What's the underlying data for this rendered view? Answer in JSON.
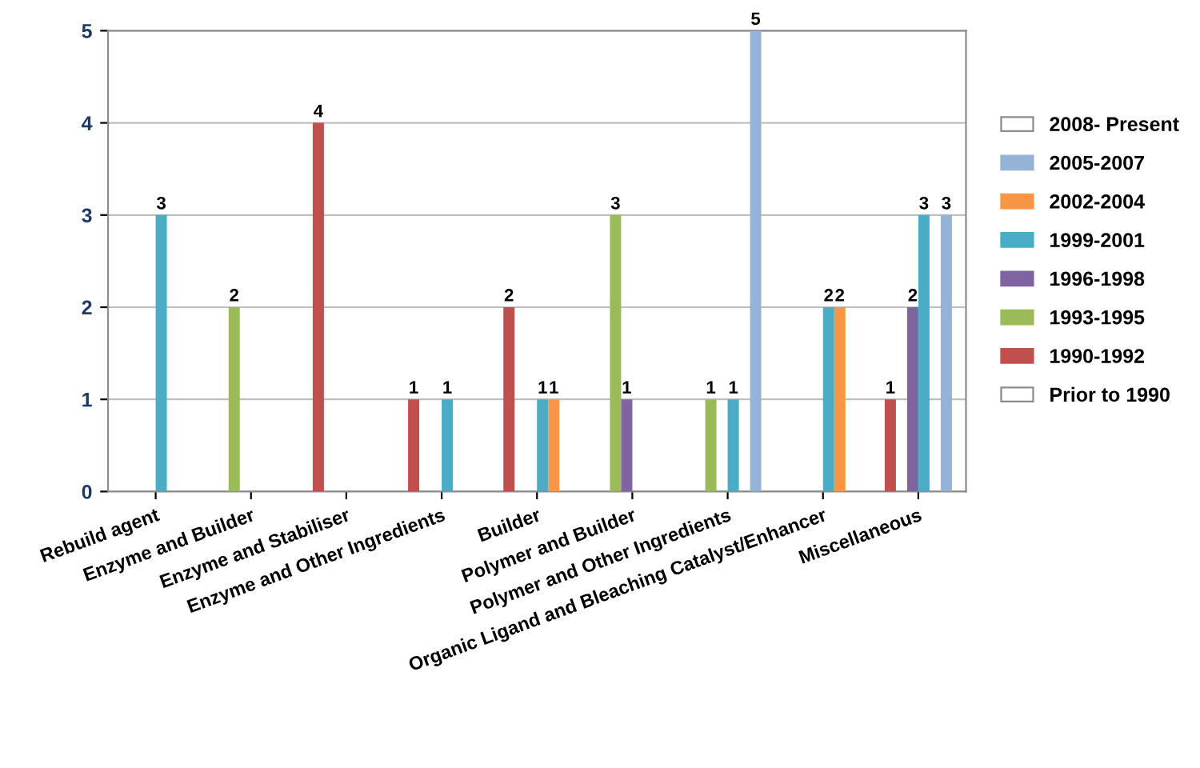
{
  "chart_data": {
    "type": "bar",
    "categories": [
      "Rebuild agent",
      "Enzyme and Builder",
      "Enzyme and Stabiliser",
      "Enzyme and Other Ingredients",
      "Builder",
      "Polymer and Builder",
      "Polymer and Other Ingredients",
      "Organic Ligand and Bleaching Catalyst/Enhancer",
      "Miscellaneous"
    ],
    "series": [
      {
        "name": "Prior to 1990",
        "values": [
          null,
          null,
          null,
          null,
          null,
          null,
          null,
          null,
          null
        ]
      },
      {
        "name": "1990-1992",
        "color": "#c0504d",
        "values": [
          null,
          null,
          4,
          1,
          2,
          null,
          null,
          null,
          1
        ]
      },
      {
        "name": "1993-1995",
        "color": "#9bbb59",
        "values": [
          null,
          2,
          null,
          null,
          null,
          3,
          1,
          null,
          null
        ]
      },
      {
        "name": "1996-1998",
        "color": "#8064a2",
        "values": [
          null,
          null,
          null,
          null,
          null,
          1,
          null,
          null,
          2
        ]
      },
      {
        "name": "1999-2001",
        "color": "#4bacc6",
        "values": [
          3,
          null,
          null,
          1,
          1,
          null,
          1,
          2,
          3
        ]
      },
      {
        "name": "2002-2004",
        "color": "#f79646",
        "values": [
          null,
          null,
          null,
          null,
          1,
          null,
          null,
          2,
          null
        ]
      },
      {
        "name": "2005-2007",
        "color": "#95b3d7",
        "values": [
          null,
          null,
          null,
          null,
          null,
          null,
          5,
          null,
          3
        ]
      },
      {
        "name": "2008- Present",
        "values": [
          null,
          null,
          null,
          null,
          null,
          null,
          null,
          null,
          null
        ]
      }
    ],
    "ylim": [
      0,
      5
    ],
    "yticks": [
      0,
      1,
      2,
      3,
      4,
      5
    ],
    "grid": "y",
    "legend": "right",
    "data_labels": true
  }
}
